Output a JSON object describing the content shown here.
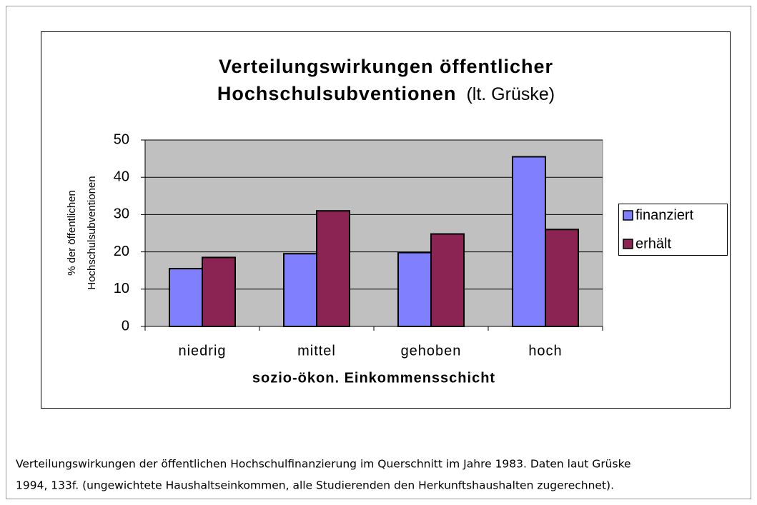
{
  "chart_data": {
    "type": "bar",
    "title": [
      "Verteilungswirkungen öffentlicher",
      "Hochschulsubventionen"
    ],
    "title_note": "(lt. Grüske)",
    "y_label": [
      "% der öffentlichen",
      "Hochschulsubventionen"
    ],
    "x_label": "sozio-ökon. Einkommensschicht",
    "categories": [
      "niedrig",
      "mittel",
      "gehoben",
      "hoch"
    ],
    "series": [
      {
        "name": "finanziert",
        "color": "#8080ff",
        "values": [
          15.5,
          19.5,
          19.8,
          45.5
        ]
      },
      {
        "name": "erhält",
        "color": "#8b2452",
        "values": [
          18.5,
          31,
          24.8,
          26
        ]
      }
    ],
    "ylim": [
      0,
      50
    ],
    "yticks": [
      0,
      10,
      20,
      30,
      40,
      50
    ],
    "grid": true,
    "legend": "right",
    "plot_background": "#c0c0c0"
  },
  "caption": [
    "Verteilungswirkungen der öffentlichen Hochschulfinanzierung im Querschnitt im Jahre 1983. Daten laut Grüske",
    "1994, 133f. (ungewichtete Haushaltseinkommen, alle Studierenden den Herkunftshaushalten zugerechnet)."
  ]
}
